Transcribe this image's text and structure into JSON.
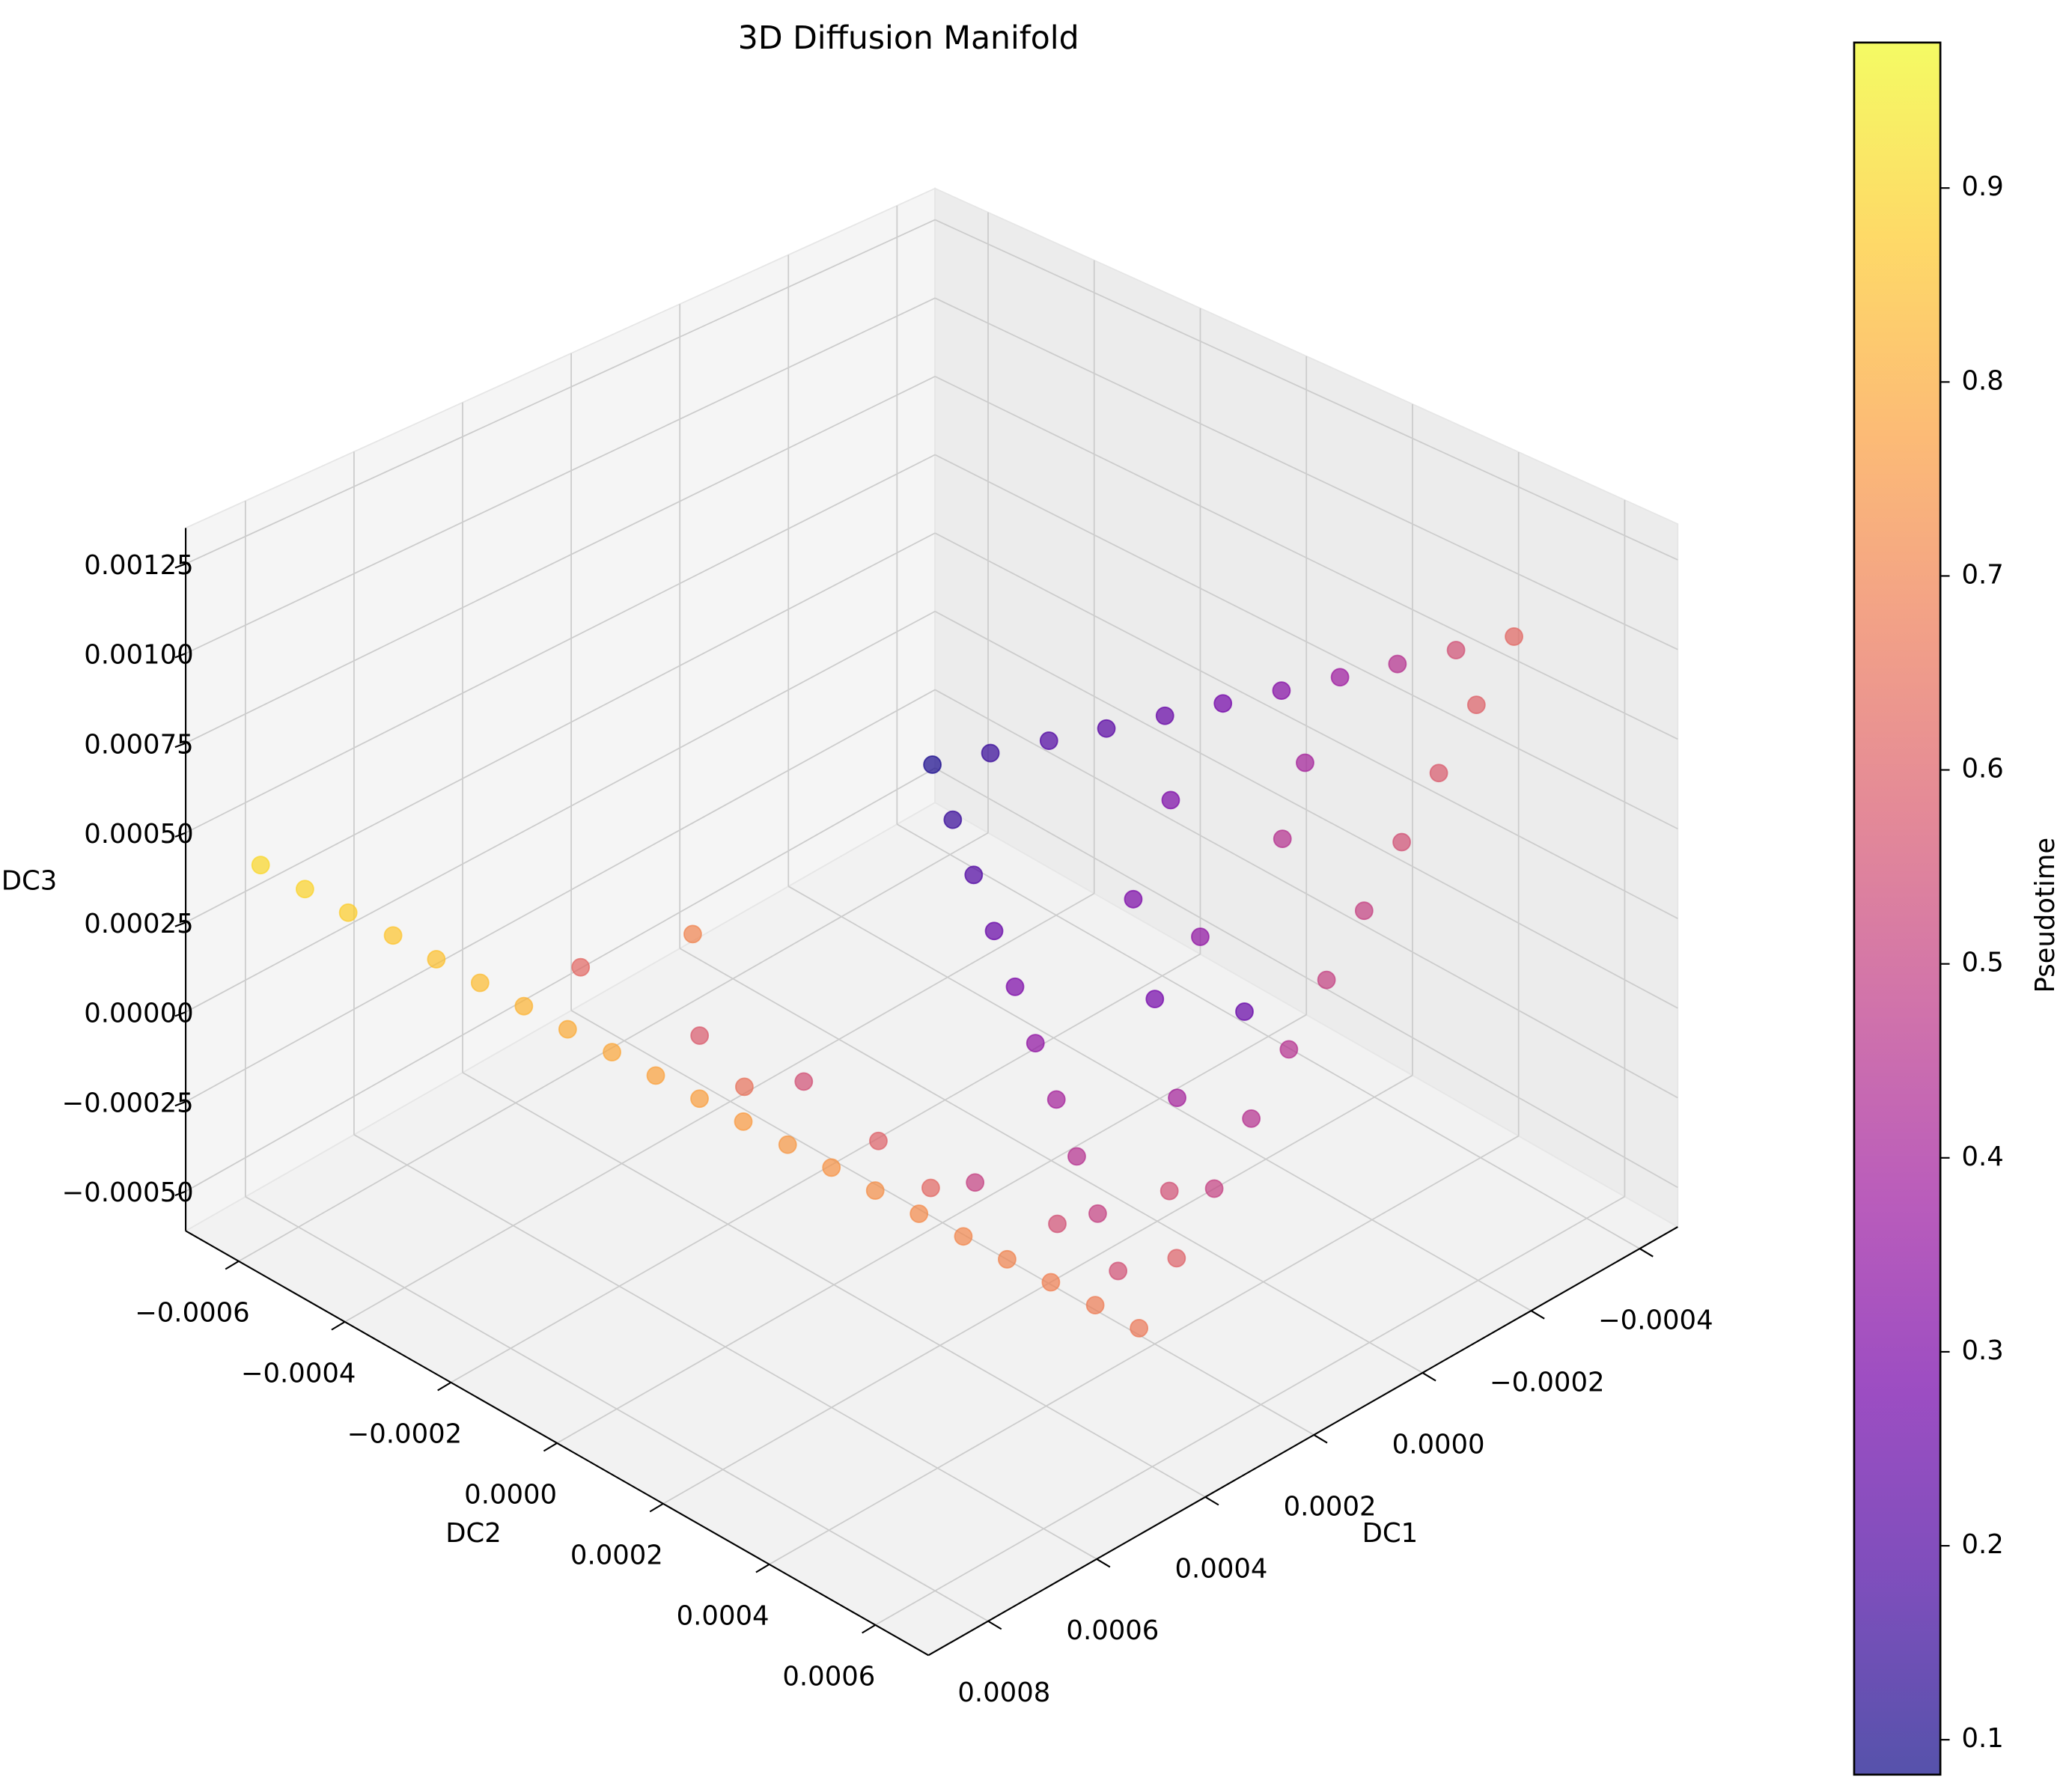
{
  "chart_data": {
    "type": "scatter3d",
    "title": "3D Diffusion Manifold",
    "xlabel": "DC1",
    "ylabel": "DC2",
    "zlabel": "DC3",
    "xlim": [
      -0.00047,
      0.00091
    ],
    "ylim": [
      -0.0007,
      0.0007
    ],
    "zlim": [
      -0.00061,
      0.00135
    ],
    "xticks": [
      {
        "value": -0.0004,
        "label": "−0.0004"
      },
      {
        "value": -0.0002,
        "label": "−0.0002"
      },
      {
        "value": 0,
        "label": "0.0000"
      },
      0.0002,
      0.0004,
      0.0006,
      0.0008
    ],
    "yticks": [
      {
        "value": -0.0006,
        "label": "−0.0006"
      },
      {
        "value": -0.0004,
        "label": "−0.0004"
      },
      {
        "value": -0.0002,
        "label": "−0.0002"
      },
      {
        "value": 0,
        "label": "0.0000"
      },
      0.0002,
      0.0004,
      0.0006
    ],
    "zticks": [
      {
        "value": -0.0005,
        "label": "−0.00050"
      },
      {
        "value": -0.00025,
        "label": "−0.00025"
      },
      {
        "value": 0,
        "label": "0.00000"
      },
      0.00025,
      {
        "value": 0.0005,
        "label": "0.00050"
      },
      0.00075,
      {
        "value": 0.001,
        "label": "0.00100"
      },
      0.00125
    ],
    "grid": true,
    "alpha": 0.7,
    "colormap": [
      "#0d0887",
      "#46039f",
      "#7201a8",
      "#9c179e",
      "#bd3786",
      "#d8576b",
      "#ed7953",
      "#fb9f3a",
      "#fdca26",
      "#f0f921"
    ],
    "colorbar": {
      "label": "Pseudotime",
      "clim": [
        0.082,
        0.975
      ],
      "ticks": [
        0.1,
        0.2,
        0.3,
        0.4,
        0.5,
        0.6,
        0.7,
        0.8,
        0.9
      ]
    },
    "x": [
      0.000813,
      0.00079,
      0.000768,
      0.000744,
      0.000722,
      0.0007,
      0.000677,
      0.000655,
      0.000631,
      0.000609,
      0.000586,
      0.000564,
      0.00054,
      0.000518,
      0.000495,
      0.000473,
      0.000449,
      0.000427,
      0.000404,
      0.000381,
      0.000358,
      0.000634,
      0.000579,
      0.000524,
      0.000496,
      0.000441,
      0.000399,
      0.000565,
      0.000468,
      0.000496,
      0.000335,
      0.000311,
      0.000288,
      0.000264,
      0.000241,
      0.000217,
      0.000194,
      0.00017,
      0.000147,
      0.000123,
      0.000278,
      0.000198,
      0.000118,
      3.8e-05,
      -4.2e-05,
      -0.000122,
      -0.000202,
      -0.000282,
      -0.000362,
      -0.000442,
      6.7e-05,
      1e-05,
      -4.6e-05,
      -0.000103,
      -0.000159,
      -0.000216,
      -0.000273,
      -0.000329,
      -0.000386,
      5.4e-05,
      -1e-06,
      0.00011,
      -5.6e-05,
      -0.000125,
      0.000151,
      0.00022,
      2.7e-05,
      -0.000194
    ],
    "y": [
      -0.000658,
      -0.000598,
      -0.000539,
      -0.000479,
      -0.00042,
      -0.00036,
      -0.000301,
      -0.000241,
      -0.000182,
      -0.000122,
      -6.3e-05,
      -3e-06,
      5.6e-05,
      0.000116,
      0.000175,
      0.000235,
      0.000294,
      0.000354,
      0.000413,
      0.000473,
      0.000532,
      -0.000238,
      -7e-05,
      7e-05,
      0.000182,
      0.000308,
      0.00042,
      0,
      0.000252,
      -0.000168,
      0.000469,
      0.000406,
      0.000343,
      0.00028,
      0.000217,
      0.000154,
      9.1e-05,
      2.8e-05,
      -3.5e-05,
      -9.8e-05,
      0.000521,
      0.00051,
      0.000498,
      0.000487,
      0.000476,
      0.000465,
      0.000454,
      0.000442,
      0.000431,
      0.00042,
      -4.6e-05,
      6e-06,
      5.7e-05,
      0.000109,
      0.000161,
      0.000213,
      0.000265,
      0.000316,
      0.000368,
      0.00021,
      0.00028,
      0.000308,
      0.000168,
      0.000308,
      0.000392,
      0.000448,
      0.000392,
      0.00028
    ],
    "z": [
      0.00037,
      0.000335,
      0.000301,
      0.000268,
      0.000233,
      0.000199,
      0.000164,
      0.000131,
      9.6e-05,
      6.2e-05,
      2.7e-05,
      -6e-06,
      -4.2e-05,
      -7.5e-05,
      -0.00011,
      -0.000144,
      -0.000179,
      -0.000212,
      -0.000247,
      -0.000281,
      -0.000316,
      0.000292,
      0.000194,
      0.000135,
      3.7e-05,
      -2.2e-05,
      -8.1e-05,
      9.6e-05,
      -6.1e-05,
      0.000331,
      -0.000228,
      -0.00014,
      -5.1e-05,
      3.7e-05,
      0.000125,
      0.000213,
      0.000301,
      0.00039,
      0.000478,
      0.000566,
      -0.000198,
      -8.1e-05,
      3.7e-05,
      0.000154,
      0.000272,
      0.00039,
      0.000507,
      0.000625,
      0.000742,
      0.00086,
      0.000595,
      0.000625,
      0.000654,
      0.000684,
      0.000713,
      0.000742,
      0.000772,
      0.000801,
      0.000831,
      0.00037,
      0.000272,
      0.000213,
      0.000527,
      0.000468,
      3.7e-05,
      -0.00012,
      0.000174,
      0.000605
    ],
    "c": [
      0.9,
      0.89,
      0.88,
      0.86,
      0.85,
      0.84,
      0.82,
      0.8,
      0.79,
      0.78,
      0.77,
      0.76,
      0.75,
      0.74,
      0.73,
      0.72,
      0.71,
      0.7,
      0.69,
      0.68,
      0.67,
      0.62,
      0.58,
      0.55,
      0.6,
      0.5,
      0.55,
      0.65,
      0.62,
      0.7,
      0.55,
      0.5,
      0.45,
      0.4,
      0.35,
      0.3,
      0.25,
      0.2,
      0.15,
      0.1,
      0.6,
      0.5,
      0.45,
      0.45,
      0.5,
      0.5,
      0.55,
      0.58,
      0.6,
      0.62,
      0.15,
      0.2,
      0.22,
      0.25,
      0.28,
      0.32,
      0.38,
      0.45,
      0.55,
      0.3,
      0.35,
      0.28,
      0.3,
      0.45,
      0.4,
      0.55,
      0.25,
      0.4
    ]
  }
}
